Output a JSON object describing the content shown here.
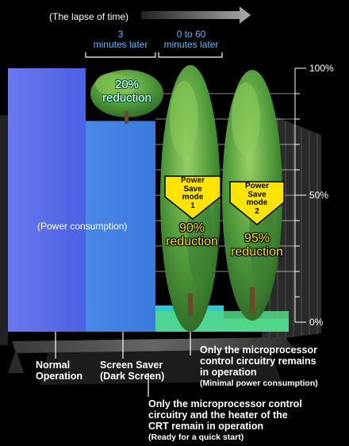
{
  "timeline": {
    "title": "(The lapse of time)",
    "interval_1": [
      "3",
      "minutes later"
    ],
    "interval_2": [
      "0 to 60",
      "minutes later"
    ]
  },
  "axis": {
    "ticks": [
      "100%",
      "50%",
      "0%"
    ],
    "label": "(Power consumption)"
  },
  "reductions": {
    "screen_saver": [
      "20%",
      "reduction"
    ],
    "mode_1": [
      "90%",
      "reduction"
    ],
    "mode_2": [
      "95%",
      "reduction"
    ]
  },
  "badges": {
    "mode_1": [
      "Power",
      "Save",
      "mode",
      "1"
    ],
    "mode_2": [
      "Power",
      "Save",
      "mode",
      "2"
    ]
  },
  "stages": {
    "normal": [
      "Normal",
      "Operation"
    ],
    "screen_saver": [
      "Screen Saver",
      "(Dark Screen)"
    ],
    "mode_2_desc": [
      "Only the microprocessor",
      "control circuitry remains",
      "in operation",
      "(Minimal power consumption)"
    ],
    "mode_1_desc": [
      "Only the microprocessor control",
      "circuitry and the heater of the",
      "CRT remain in operation",
      "(Ready for a quick start)"
    ]
  },
  "chart_data": {
    "type": "bar",
    "categories": [
      "Normal Operation",
      "Screen Saver (Dark Screen)",
      "Power Save mode 1",
      "Power Save mode 2"
    ],
    "values": [
      100,
      80,
      10,
      5
    ],
    "ylim": [
      0,
      100
    ]
  },
  "colors": {
    "background": "#000000",
    "bar_normal": "#4f66e8",
    "bar_screen_saver": "#3f86e0",
    "bar_mode_1": "#2fc8d8",
    "bar_mode_2": "#3fd090",
    "interval_text": "#5ab6ff",
    "reduction_text": "#ffe400",
    "badge": "#ffe400"
  }
}
